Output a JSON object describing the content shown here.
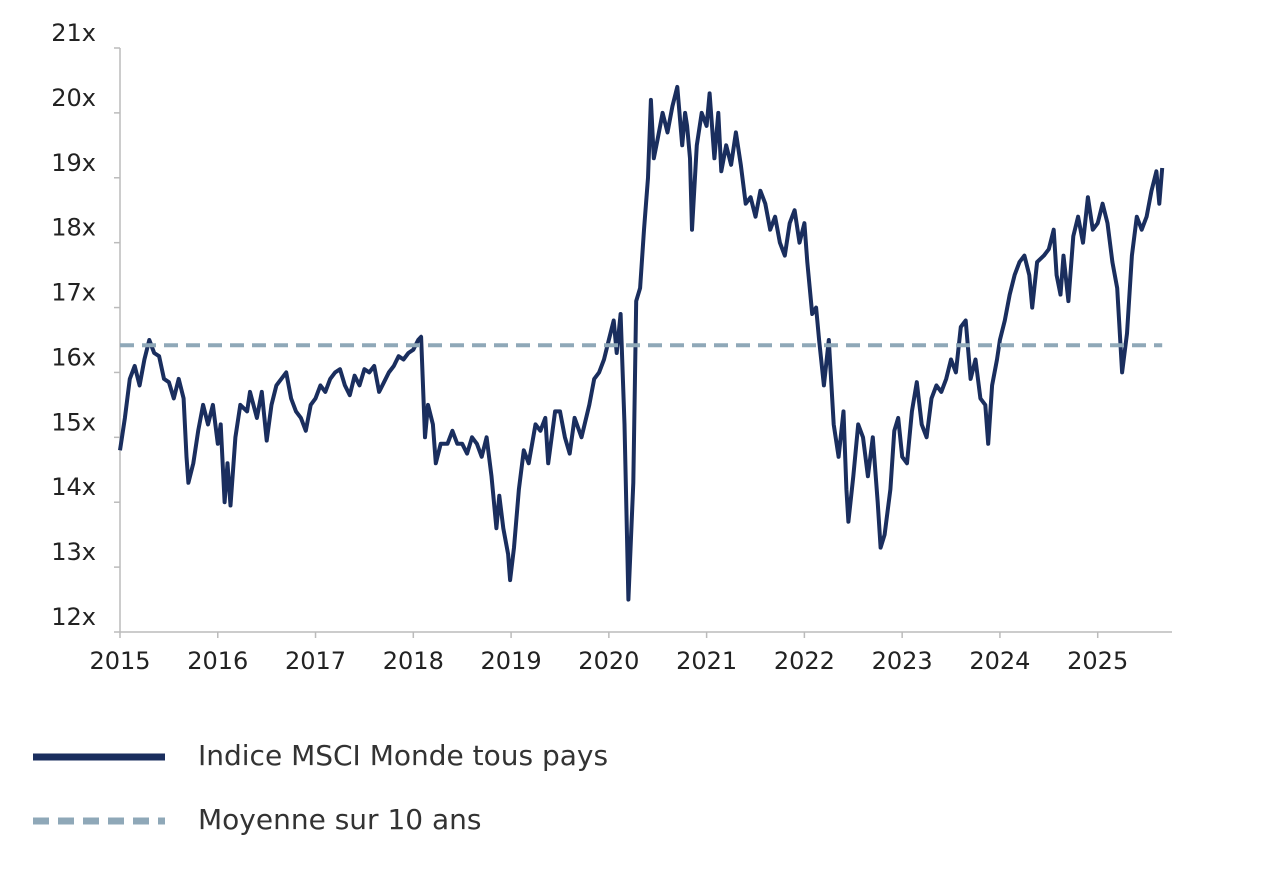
{
  "chart_data": {
    "type": "line",
    "xlim": [
      2015,
      2025.76
    ],
    "xticks": [
      2015,
      2016,
      2017,
      2018,
      2019,
      2020,
      2021,
      2022,
      2023,
      2024,
      2025
    ],
    "ylim": [
      12,
      21
    ],
    "yticks": [
      {
        "value": 12,
        "label": "12x"
      },
      {
        "value": 13,
        "label": "13x"
      },
      {
        "value": 14,
        "label": "14x"
      },
      {
        "value": 15,
        "label": "15x"
      },
      {
        "value": 16,
        "label": "16x"
      },
      {
        "value": 17,
        "label": "17x"
      },
      {
        "value": 18,
        "label": "18x"
      },
      {
        "value": 19,
        "label": "19x"
      },
      {
        "value": 20,
        "label": "20x"
      },
      {
        "value": 21,
        "label": "21x"
      }
    ],
    "legend": "bottom",
    "series": [
      {
        "name": "Indice MSCI Monde tous pays",
        "color": "#1a2e5e",
        "dash": false,
        "x": [
          2015.0,
          2015.05,
          2015.1,
          2015.15,
          2015.2,
          2015.25,
          2015.3,
          2015.35,
          2015.4,
          2015.45,
          2015.5,
          2015.55,
          2015.6,
          2015.65,
          2015.68,
          2015.7,
          2015.75,
          2015.8,
          2015.85,
          2015.9,
          2015.95,
          2016.0,
          2016.03,
          2016.07,
          2016.1,
          2016.13,
          2016.18,
          2016.23,
          2016.3,
          2016.33,
          2016.4,
          2016.45,
          2016.5,
          2016.55,
          2016.6,
          2016.65,
          2016.7,
          2016.75,
          2016.8,
          2016.85,
          2016.9,
          2016.95,
          2017.0,
          2017.05,
          2017.1,
          2017.15,
          2017.2,
          2017.25,
          2017.3,
          2017.35,
          2017.4,
          2017.45,
          2017.5,
          2017.55,
          2017.6,
          2017.65,
          2017.7,
          2017.75,
          2017.8,
          2017.85,
          2017.9,
          2017.95,
          2018.0,
          2018.05,
          2018.08,
          2018.12,
          2018.15,
          2018.2,
          2018.23,
          2018.28,
          2018.35,
          2018.4,
          2018.45,
          2018.5,
          2018.55,
          2018.6,
          2018.65,
          2018.7,
          2018.75,
          2018.8,
          2018.85,
          2018.88,
          2018.92,
          2018.97,
          2018.99,
          2019.03,
          2019.08,
          2019.13,
          2019.18,
          2019.25,
          2019.3,
          2019.35,
          2019.38,
          2019.45,
          2019.5,
          2019.55,
          2019.6,
          2019.65,
          2019.72,
          2019.8,
          2019.85,
          2019.9,
          2019.95,
          2020.0,
          2020.05,
          2020.08,
          2020.12,
          2020.16,
          2020.2,
          2020.25,
          2020.28,
          2020.32,
          2020.36,
          2020.4,
          2020.43,
          2020.46,
          2020.5,
          2020.55,
          2020.6,
          2020.65,
          2020.7,
          2020.75,
          2020.78,
          2020.8,
          2020.83,
          2020.85,
          2020.9,
          2020.95,
          2021.0,
          2021.03,
          2021.08,
          2021.12,
          2021.15,
          2021.2,
          2021.25,
          2021.3,
          2021.35,
          2021.4,
          2021.45,
          2021.5,
          2021.55,
          2021.6,
          2021.65,
          2021.7,
          2021.75,
          2021.8,
          2021.85,
          2021.9,
          2021.95,
          2022.0,
          2022.03,
          2022.08,
          2022.12,
          2022.15,
          2022.2,
          2022.25,
          2022.3,
          2022.35,
          2022.4,
          2022.43,
          2022.45,
          2022.5,
          2022.55,
          2022.6,
          2022.65,
          2022.7,
          2022.75,
          2022.78,
          2022.82,
          2022.88,
          2022.92,
          2022.96,
          2023.0,
          2023.05,
          2023.1,
          2023.15,
          2023.2,
          2023.25,
          2023.3,
          2023.35,
          2023.4,
          2023.45,
          2023.5,
          2023.55,
          2023.6,
          2023.65,
          2023.7,
          2023.75,
          2023.8,
          2023.85,
          2023.88,
          2023.92,
          2023.97,
          2024.0,
          2024.05,
          2024.1,
          2024.15,
          2024.2,
          2024.25,
          2024.3,
          2024.33,
          2024.38,
          2024.45,
          2024.5,
          2024.55,
          2024.58,
          2024.62,
          2024.65,
          2024.7,
          2024.75,
          2024.8,
          2024.85,
          2024.9,
          2024.95,
          2025.0,
          2025.05,
          2025.1,
          2025.15,
          2025.2,
          2025.25,
          2025.3,
          2025.35,
          2025.4,
          2025.45,
          2025.5,
          2025.55,
          2025.6,
          2025.63,
          2025.66
        ],
        "values": [
          14.8,
          15.3,
          15.9,
          16.1,
          15.8,
          16.2,
          16.5,
          16.3,
          16.25,
          15.9,
          15.85,
          15.6,
          15.9,
          15.6,
          14.7,
          14.3,
          14.6,
          15.1,
          15.5,
          15.2,
          15.5,
          14.9,
          15.2,
          14.0,
          14.6,
          13.95,
          15.0,
          15.5,
          15.4,
          15.7,
          15.3,
          15.7,
          14.95,
          15.5,
          15.8,
          15.9,
          16.0,
          15.6,
          15.4,
          15.3,
          15.1,
          15.5,
          15.6,
          15.8,
          15.7,
          15.9,
          16.0,
          16.05,
          15.8,
          15.65,
          15.95,
          15.8,
          16.05,
          16.0,
          16.1,
          15.7,
          15.85,
          16.0,
          16.1,
          16.25,
          16.2,
          16.3,
          16.35,
          16.5,
          16.55,
          15.0,
          15.5,
          15.2,
          14.6,
          14.9,
          14.9,
          15.1,
          14.9,
          14.9,
          14.75,
          15.0,
          14.9,
          14.7,
          15.0,
          14.4,
          13.6,
          14.1,
          13.6,
          13.2,
          12.8,
          13.3,
          14.2,
          14.8,
          14.6,
          15.2,
          15.1,
          15.3,
          14.6,
          15.4,
          15.4,
          15.0,
          14.75,
          15.3,
          15.0,
          15.5,
          15.9,
          16.0,
          16.2,
          16.5,
          16.8,
          16.3,
          16.9,
          15.2,
          12.5,
          14.3,
          17.1,
          17.3,
          18.2,
          19.0,
          20.2,
          19.3,
          19.6,
          20.0,
          19.7,
          20.1,
          20.4,
          19.5,
          20.0,
          19.8,
          19.3,
          18.2,
          19.5,
          20.0,
          19.8,
          20.3,
          19.3,
          20.0,
          19.1,
          19.5,
          19.2,
          19.7,
          19.2,
          18.6,
          18.7,
          18.4,
          18.8,
          18.6,
          18.2,
          18.4,
          18.0,
          17.8,
          18.3,
          18.5,
          18.0,
          18.3,
          17.7,
          16.9,
          17.0,
          16.5,
          15.8,
          16.5,
          15.2,
          14.7,
          15.4,
          14.2,
          13.7,
          14.4,
          15.2,
          15.0,
          14.4,
          15.0,
          14.0,
          13.3,
          13.5,
          14.2,
          15.1,
          15.3,
          14.7,
          14.6,
          15.4,
          15.85,
          15.2,
          15.0,
          15.6,
          15.8,
          15.7,
          15.9,
          16.2,
          16.0,
          16.7,
          16.8,
          15.9,
          16.2,
          15.6,
          15.5,
          14.9,
          15.8,
          16.2,
          16.5,
          16.8,
          17.2,
          17.5,
          17.7,
          17.8,
          17.5,
          17.0,
          17.7,
          17.8,
          17.9,
          18.2,
          17.5,
          17.2,
          17.8,
          17.1,
          18.1,
          18.4,
          18.0,
          18.7,
          18.2,
          18.3,
          18.6,
          18.3,
          17.7,
          17.3,
          16.0,
          16.6,
          17.8,
          18.4,
          18.2,
          18.4,
          18.8,
          19.1,
          18.6,
          19.15
        ]
      },
      {
        "name": "Moyenne sur 10 ans",
        "color": "#8fa8b8",
        "dash": true,
        "x": [
          2015.0,
          2025.66
        ],
        "values": [
          16.42,
          16.42
        ]
      }
    ]
  }
}
